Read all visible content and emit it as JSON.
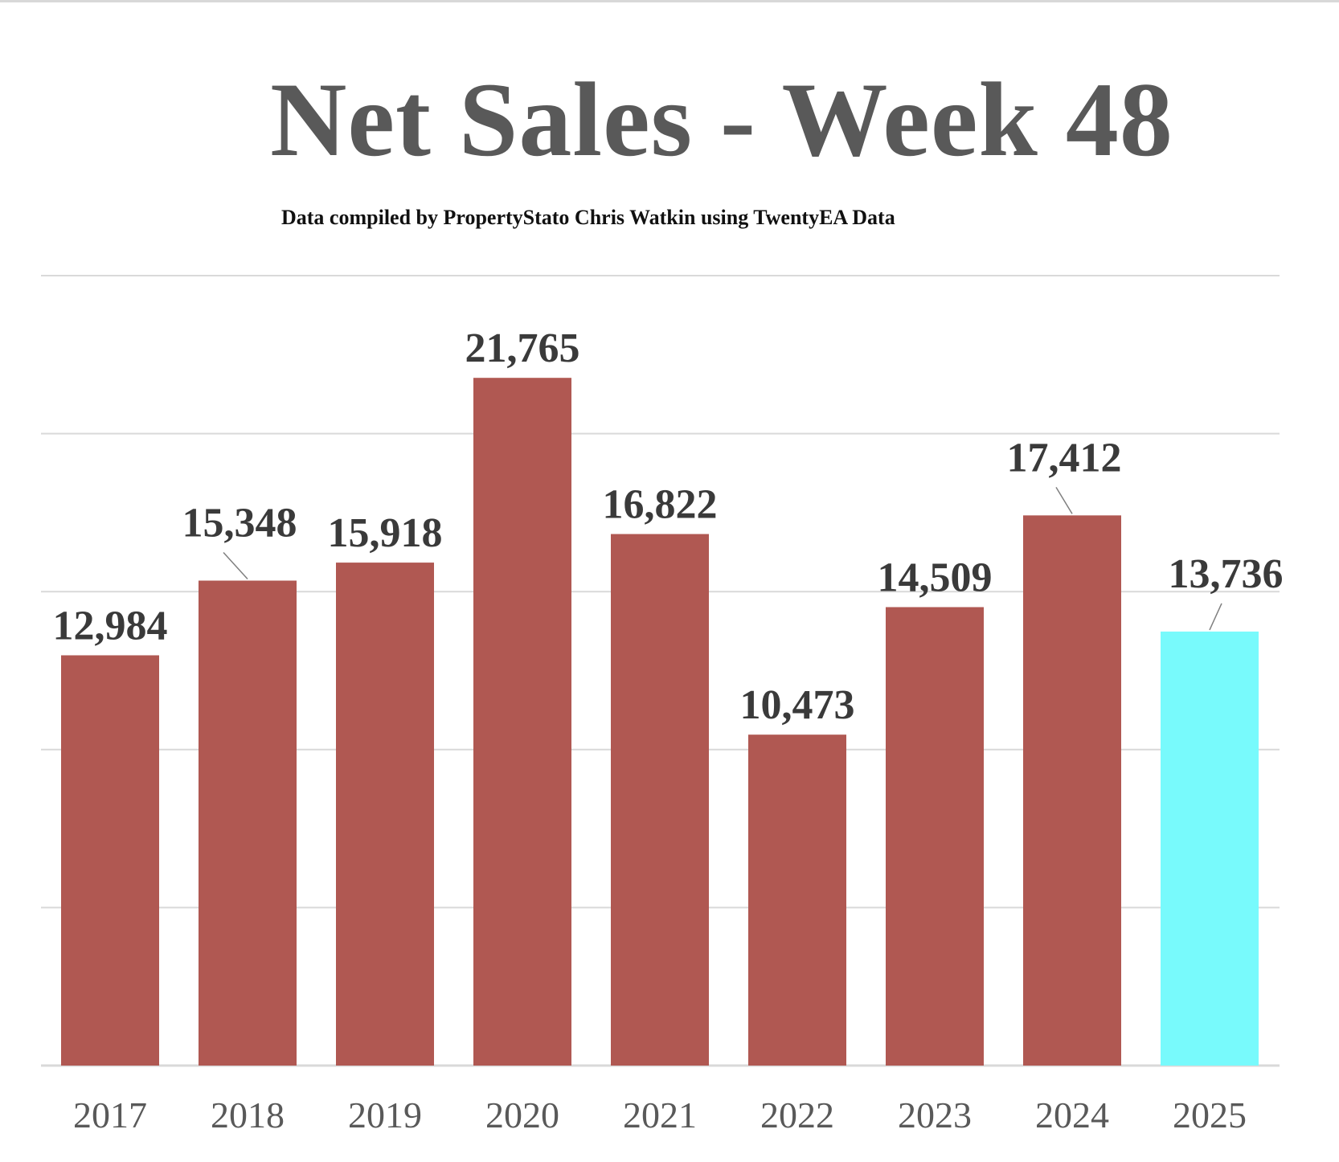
{
  "chart_data": {
    "type": "bar",
    "title": "Net Sales - Week 48",
    "subtitle": "Data compiled by PropertyStato Chris Watkin using TwentyEA Data",
    "xlabel": "",
    "ylabel": "",
    "ylim": [
      0,
      25000
    ],
    "grid": true,
    "gridlines": [
      0,
      5000,
      10000,
      15000,
      20000,
      25000
    ],
    "categories": [
      "2017",
      "2018",
      "2019",
      "2020",
      "2021",
      "2022",
      "2023",
      "2024",
      "2025"
    ],
    "values": [
      12984,
      15348,
      15918,
      21765,
      16822,
      10473,
      14509,
      17412,
      13736
    ],
    "data_labels": [
      "12,984",
      "15,348",
      "15,918",
      "21,765",
      "16,822",
      "10,473",
      "14,509",
      "17,412",
      "13,736"
    ],
    "colors": {
      "bar": "#b05852",
      "highlight": "#78fafc",
      "grid": "#d9d9d9",
      "label": "#3a3a3a",
      "tick": "#595959"
    },
    "highlight_category": "2025"
  }
}
